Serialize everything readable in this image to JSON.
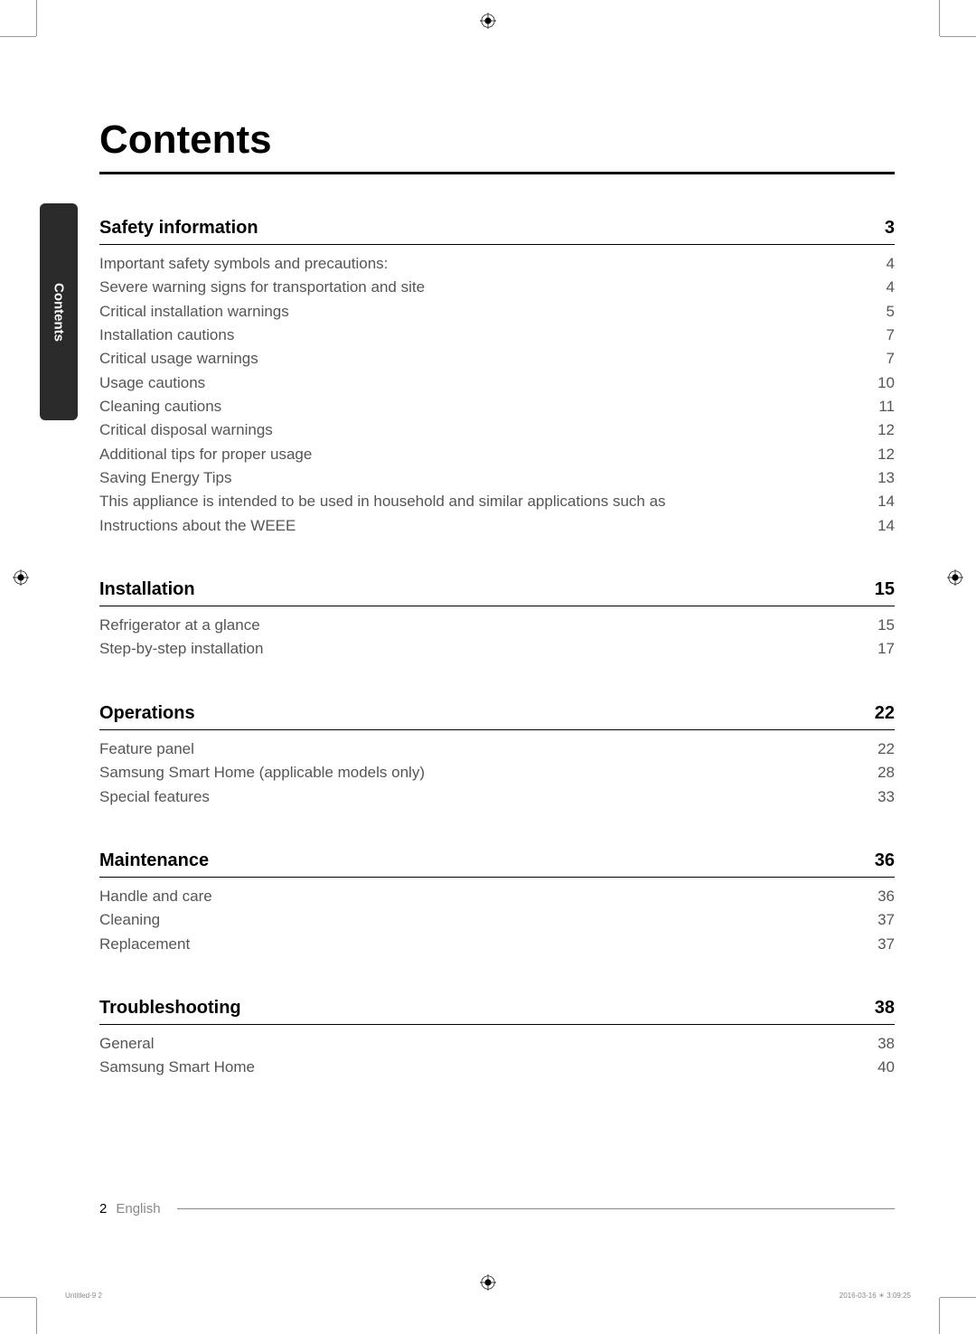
{
  "mainTitle": "Contents",
  "sidebarLabel": "Contents",
  "sections": [
    {
      "title": "Safety information",
      "page": "3",
      "entries": [
        {
          "title": "Important safety symbols and precautions:",
          "page": "4"
        },
        {
          "title": "Severe warning signs for transportation and site",
          "page": "4"
        },
        {
          "title": "Critical installation warnings",
          "page": "5"
        },
        {
          "title": "Installation cautions",
          "page": "7"
        },
        {
          "title": "Critical usage warnings",
          "page": "7"
        },
        {
          "title": "Usage cautions",
          "page": "10"
        },
        {
          "title": "Cleaning cautions",
          "page": "11"
        },
        {
          "title": "Critical disposal warnings",
          "page": "12"
        },
        {
          "title": "Additional tips for proper usage",
          "page": "12"
        },
        {
          "title": "Saving Energy Tips",
          "page": "13"
        },
        {
          "title": "This appliance is intended to be used in household and similar applications such as",
          "page": "14"
        },
        {
          "title": "Instructions about the WEEE",
          "page": "14"
        }
      ]
    },
    {
      "title": "Installation",
      "page": "15",
      "entries": [
        {
          "title": "Refrigerator at a glance",
          "page": "15"
        },
        {
          "title": "Step-by-step installation",
          "page": "17"
        }
      ]
    },
    {
      "title": "Operations",
      "page": "22",
      "entries": [
        {
          "title": "Feature panel",
          "page": "22"
        },
        {
          "title": "Samsung Smart Home (applicable models only)",
          "page": "28"
        },
        {
          "title": "Special features",
          "page": "33"
        }
      ]
    },
    {
      "title": "Maintenance",
      "page": "36",
      "entries": [
        {
          "title": "Handle and care",
          "page": "36"
        },
        {
          "title": "Cleaning",
          "page": "37"
        },
        {
          "title": "Replacement",
          "page": "37"
        }
      ]
    },
    {
      "title": "Troubleshooting",
      "page": "38",
      "entries": [
        {
          "title": "General",
          "page": "38"
        },
        {
          "title": "Samsung Smart Home",
          "page": "40"
        }
      ]
    }
  ],
  "footer": {
    "pageNumber": "2",
    "language": "English"
  },
  "printFooter": {
    "left": "Untitled-9   2",
    "right": "2016-03-16   ☀ 3:09:25"
  },
  "colors": {
    "text_primary": "#000000",
    "text_secondary": "#555555",
    "text_muted": "#888888",
    "sidebar_bg": "#2a2a2a",
    "sidebar_text": "#ffffff",
    "background": "#ffffff"
  },
  "typography": {
    "main_title_fontsize": 44,
    "section_title_fontsize": 20,
    "entry_fontsize": 17,
    "footer_fontsize": 15,
    "print_footer_fontsize": 8
  }
}
